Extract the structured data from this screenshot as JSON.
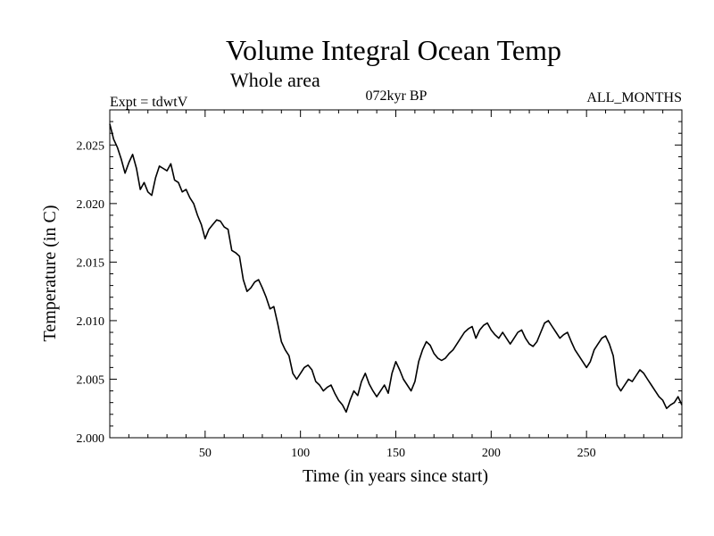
{
  "chart_data": {
    "type": "line",
    "title": "Volume Integral Ocean Temp",
    "subtitle": "Whole area",
    "expt_label": "Expt = tdwtV",
    "period_label": "072kyr BP",
    "months_label": "ALL_MONTHS",
    "xlabel": "Time (in years since start)",
    "ylabel": "Temperature (in C)",
    "xlim": [
      0,
      300
    ],
    "ylim": [
      2.0,
      2.028
    ],
    "x_ticks": [
      50,
      100,
      150,
      200,
      250
    ],
    "x_tick_labels": [
      "50",
      "100",
      "150",
      "200",
      "250"
    ],
    "y_ticks": [
      2.0,
      2.005,
      2.01,
      2.015,
      2.02,
      2.025
    ],
    "y_tick_labels": [
      "2.000",
      "2.005",
      "2.010",
      "2.015",
      "2.020",
      "2.025"
    ],
    "grid": false,
    "series": [
      {
        "name": "Volume Integral Ocean Temp",
        "x": [
          0,
          2,
          4,
          6,
          8,
          10,
          12,
          14,
          16,
          18,
          20,
          22,
          24,
          26,
          28,
          30,
          32,
          34,
          36,
          38,
          40,
          42,
          44,
          46,
          48,
          50,
          52,
          54,
          56,
          58,
          60,
          62,
          64,
          66,
          68,
          70,
          72,
          74,
          76,
          78,
          80,
          82,
          84,
          86,
          88,
          90,
          92,
          94,
          96,
          98,
          100,
          102,
          104,
          106,
          108,
          110,
          112,
          114,
          116,
          118,
          120,
          122,
          124,
          126,
          128,
          130,
          132,
          134,
          136,
          138,
          140,
          142,
          144,
          146,
          148,
          150,
          152,
          154,
          156,
          158,
          160,
          162,
          164,
          166,
          168,
          170,
          172,
          174,
          176,
          178,
          180,
          182,
          184,
          186,
          188,
          190,
          192,
          194,
          196,
          198,
          200,
          202,
          204,
          206,
          208,
          210,
          212,
          214,
          216,
          218,
          220,
          222,
          224,
          226,
          228,
          230,
          232,
          234,
          236,
          238,
          240,
          242,
          244,
          246,
          248,
          250,
          252,
          254,
          256,
          258,
          260,
          262,
          264,
          266,
          268,
          270,
          272,
          274,
          276,
          278,
          280,
          282,
          284,
          286,
          288,
          290,
          292,
          294,
          296,
          298,
          300
        ],
        "values": [
          2.0268,
          2.0255,
          2.0248,
          2.0238,
          2.0226,
          2.0235,
          2.0242,
          2.023,
          2.0212,
          2.0218,
          2.021,
          2.0207,
          2.0222,
          2.0232,
          2.023,
          2.0228,
          2.0234,
          2.022,
          2.0218,
          2.021,
          2.0212,
          2.0205,
          2.02,
          2.019,
          2.0182,
          2.017,
          2.0178,
          2.0182,
          2.0186,
          2.0185,
          2.018,
          2.0178,
          2.016,
          2.0158,
          2.0155,
          2.0135,
          2.0125,
          2.0128,
          2.0133,
          2.0135,
          2.0128,
          2.012,
          2.011,
          2.0112,
          2.0098,
          2.0082,
          2.0075,
          2.007,
          2.0055,
          2.005,
          2.0055,
          2.006,
          2.0062,
          2.0058,
          2.0048,
          2.0045,
          2.004,
          2.0043,
          2.0045,
          2.0038,
          2.0032,
          2.0028,
          2.0022,
          2.0032,
          2.004,
          2.0036,
          2.0048,
          2.0055,
          2.0046,
          2.004,
          2.0035,
          2.004,
          2.0045,
          2.0038,
          2.0055,
          2.0065,
          2.0058,
          2.005,
          2.0045,
          2.004,
          2.0048,
          2.0065,
          2.0075,
          2.0082,
          2.0079,
          2.0072,
          2.0068,
          2.0066,
          2.0068,
          2.0072,
          2.0075,
          2.008,
          2.0085,
          2.009,
          2.0093,
          2.0095,
          2.0085,
          2.0092,
          2.0096,
          2.0098,
          2.0092,
          2.0088,
          2.0085,
          2.009,
          2.0085,
          2.008,
          2.0085,
          2.009,
          2.0092,
          2.0085,
          2.008,
          2.0078,
          2.0082,
          2.009,
          2.0098,
          2.01,
          2.0095,
          2.009,
          2.0085,
          2.0088,
          2.009,
          2.0082,
          2.0075,
          2.007,
          2.0065,
          2.006,
          2.0065,
          2.0075,
          2.008,
          2.0085,
          2.0087,
          2.008,
          2.007,
          2.0045,
          2.004,
          2.0045,
          2.005,
          2.0048,
          2.0053,
          2.0058,
          2.0055,
          2.005,
          2.0045,
          2.004,
          2.0035,
          2.0032,
          2.0025,
          2.0028,
          2.003,
          2.0035,
          2.0028
        ]
      }
    ]
  }
}
